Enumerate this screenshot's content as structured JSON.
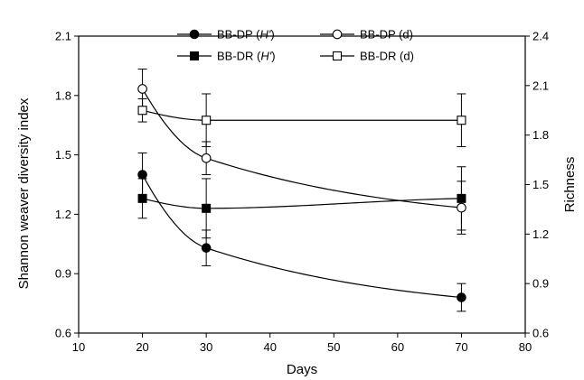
{
  "chart_data": {
    "type": "line",
    "xlabel": "Days",
    "ylabel_left": "Shannon weaver diversity index",
    "ylabel_right": "Richness",
    "xlim": [
      10,
      80
    ],
    "xticks": [
      10,
      20,
      30,
      40,
      50,
      60,
      70,
      80
    ],
    "ylim_left": [
      0.6,
      2.1
    ],
    "yticks_left": [
      "0.6",
      "0.9",
      "1.2",
      "1.5",
      "1.8",
      "2.1"
    ],
    "ylim_right": [
      0.6,
      2.4
    ],
    "yticks_right": [
      "0.6",
      "0.9",
      "1.2",
      "1.5",
      "1.8",
      "2.1",
      "2.4"
    ],
    "grid": false,
    "legend_position": "top",
    "series": [
      {
        "name": "BB-DP (H')",
        "marker": "filled-circle",
        "axis": "left",
        "x": [
          20,
          30,
          70
        ],
        "y": [
          1.4,
          1.03,
          0.78
        ],
        "err": [
          0.11,
          0.09,
          0.07
        ],
        "curve": "smooth-decay"
      },
      {
        "name": "BB-DR (H')",
        "marker": "filled-square",
        "axis": "left",
        "x": [
          20,
          30,
          70
        ],
        "y": [
          1.28,
          1.23,
          1.28
        ],
        "err": [
          0.1,
          0.15,
          0.16
        ],
        "curve": "smooth"
      },
      {
        "name": "BB-DP (d)",
        "marker": "open-circle",
        "axis": "right",
        "x": [
          20,
          30,
          70
        ],
        "y": [
          2.08,
          1.66,
          1.36
        ],
        "err": [
          0.12,
          0.1,
          0.16
        ],
        "curve": "smooth-decay"
      },
      {
        "name": "BB-DR (d)",
        "marker": "open-square",
        "axis": "right",
        "x": [
          20,
          30,
          70
        ],
        "y": [
          1.95,
          1.89,
          1.89
        ],
        "err": [
          0.07,
          0.16,
          0.16
        ],
        "curve": "smooth"
      }
    ]
  }
}
